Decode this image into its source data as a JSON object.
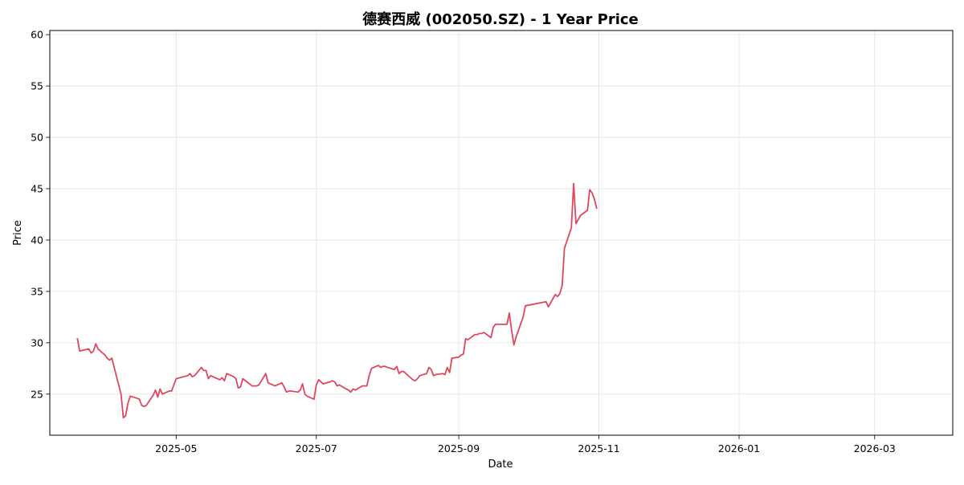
{
  "chart_data": {
    "type": "line",
    "title": "德赛西威 (002050.SZ) - 1 Year Price",
    "xlabel": "Date",
    "ylabel": "Price",
    "xlim": [
      "2025-03-07",
      "2026-04-04"
    ],
    "ylim": [
      21,
      60.4
    ],
    "grid": true,
    "x_ticks": [
      "2025-05",
      "2025-07",
      "2025-09",
      "2025-11",
      "2026-01",
      "2026-03"
    ],
    "x_tick_dates": [
      "2025-05-01",
      "2025-07-01",
      "2025-09-01",
      "2025-11-01",
      "2026-01-01",
      "2026-03-01"
    ],
    "y_ticks": [
      25,
      30,
      35,
      40,
      45,
      50,
      55,
      60
    ],
    "series": [
      {
        "color": "#e0475f",
        "points": [
          [
            "2025-03-19",
            30.4
          ],
          [
            "2025-03-20",
            29.2
          ],
          [
            "2025-03-24",
            29.4
          ],
          [
            "2025-03-25",
            29.0
          ],
          [
            "2025-03-26",
            29.2
          ],
          [
            "2025-03-27",
            29.9
          ],
          [
            "2025-03-28",
            29.4
          ],
          [
            "2025-03-31",
            28.8
          ],
          [
            "2025-04-01",
            28.5
          ],
          [
            "2025-04-02",
            28.3
          ],
          [
            "2025-04-03",
            28.5
          ],
          [
            "2025-04-07",
            25.0
          ],
          [
            "2025-04-08",
            22.7
          ],
          [
            "2025-04-09",
            22.9
          ],
          [
            "2025-04-10",
            24.1
          ],
          [
            "2025-04-11",
            24.8
          ],
          [
            "2025-04-14",
            24.6
          ],
          [
            "2025-04-15",
            24.5
          ],
          [
            "2025-04-16",
            23.9
          ],
          [
            "2025-04-17",
            23.8
          ],
          [
            "2025-04-18",
            23.9
          ],
          [
            "2025-04-21",
            24.9
          ],
          [
            "2025-04-22",
            25.4
          ],
          [
            "2025-04-23",
            24.7
          ],
          [
            "2025-04-24",
            25.5
          ],
          [
            "2025-04-25",
            25.0
          ],
          [
            "2025-04-28",
            25.3
          ],
          [
            "2025-04-29",
            25.3
          ],
          [
            "2025-04-30",
            25.9
          ],
          [
            "2025-05-01",
            26.5
          ],
          [
            "2025-05-06",
            26.8
          ],
          [
            "2025-05-07",
            27.0
          ],
          [
            "2025-05-08",
            26.7
          ],
          [
            "2025-05-09",
            26.8
          ],
          [
            "2025-05-12",
            27.6
          ],
          [
            "2025-05-13",
            27.3
          ],
          [
            "2025-05-14",
            27.3
          ],
          [
            "2025-05-15",
            26.5
          ],
          [
            "2025-05-16",
            26.8
          ],
          [
            "2025-05-19",
            26.5
          ],
          [
            "2025-05-20",
            26.4
          ],
          [
            "2025-05-21",
            26.6
          ],
          [
            "2025-05-22",
            26.3
          ],
          [
            "2025-05-23",
            27.0
          ],
          [
            "2025-05-26",
            26.7
          ],
          [
            "2025-05-27",
            26.5
          ],
          [
            "2025-05-28",
            25.6
          ],
          [
            "2025-05-29",
            25.7
          ],
          [
            "2025-05-30",
            26.5
          ],
          [
            "2025-06-03",
            25.8
          ],
          [
            "2025-06-04",
            25.8
          ],
          [
            "2025-06-05",
            25.8
          ],
          [
            "2025-06-06",
            25.9
          ],
          [
            "2025-06-09",
            27.0
          ],
          [
            "2025-06-10",
            26.1
          ],
          [
            "2025-06-11",
            26.0
          ],
          [
            "2025-06-12",
            25.9
          ],
          [
            "2025-06-13",
            25.8
          ],
          [
            "2025-06-16",
            26.1
          ],
          [
            "2025-06-17",
            25.7
          ],
          [
            "2025-06-18",
            25.2
          ],
          [
            "2025-06-19",
            25.3
          ],
          [
            "2025-06-20",
            25.3
          ],
          [
            "2025-06-23",
            25.2
          ],
          [
            "2025-06-24",
            25.4
          ],
          [
            "2025-06-25",
            26.0
          ],
          [
            "2025-06-26",
            25.0
          ],
          [
            "2025-06-27",
            24.8
          ],
          [
            "2025-06-30",
            24.5
          ],
          [
            "2025-07-01",
            25.9
          ],
          [
            "2025-07-02",
            26.4
          ],
          [
            "2025-07-03",
            26.2
          ],
          [
            "2025-07-04",
            26.0
          ],
          [
            "2025-07-07",
            26.2
          ],
          [
            "2025-07-08",
            26.3
          ],
          [
            "2025-07-09",
            26.2
          ],
          [
            "2025-07-10",
            25.8
          ],
          [
            "2025-07-11",
            25.9
          ],
          [
            "2025-07-14",
            25.5
          ],
          [
            "2025-07-15",
            25.4
          ],
          [
            "2025-07-16",
            25.2
          ],
          [
            "2025-07-17",
            25.5
          ],
          [
            "2025-07-18",
            25.4
          ],
          [
            "2025-07-21",
            25.8
          ],
          [
            "2025-07-22",
            25.8
          ],
          [
            "2025-07-23",
            25.8
          ],
          [
            "2025-07-24",
            26.8
          ],
          [
            "2025-07-25",
            27.5
          ],
          [
            "2025-07-28",
            27.8
          ],
          [
            "2025-07-29",
            27.6
          ],
          [
            "2025-07-30",
            27.7
          ],
          [
            "2025-07-31",
            27.7
          ],
          [
            "2025-08-01",
            27.6
          ],
          [
            "2025-08-04",
            27.4
          ],
          [
            "2025-08-05",
            27.7
          ],
          [
            "2025-08-06",
            27.0
          ],
          [
            "2025-08-07",
            27.2
          ],
          [
            "2025-08-08",
            27.2
          ],
          [
            "2025-08-11",
            26.6
          ],
          [
            "2025-08-12",
            26.4
          ],
          [
            "2025-08-13",
            26.3
          ],
          [
            "2025-08-14",
            26.5
          ],
          [
            "2025-08-15",
            26.8
          ],
          [
            "2025-08-18",
            27.0
          ],
          [
            "2025-08-19",
            27.6
          ],
          [
            "2025-08-20",
            27.4
          ],
          [
            "2025-08-21",
            26.8
          ],
          [
            "2025-08-22",
            26.9
          ],
          [
            "2025-08-25",
            27.0
          ],
          [
            "2025-08-26",
            26.9
          ],
          [
            "2025-08-27",
            27.6
          ],
          [
            "2025-08-28",
            27.1
          ],
          [
            "2025-08-29",
            28.5
          ],
          [
            "2025-09-01",
            28.6
          ],
          [
            "2025-09-02",
            28.8
          ],
          [
            "2025-09-03",
            28.9
          ],
          [
            "2025-09-04",
            30.4
          ],
          [
            "2025-09-05",
            30.3
          ],
          [
            "2025-09-08",
            30.8
          ],
          [
            "2025-09-09",
            30.8
          ],
          [
            "2025-09-10",
            30.9
          ],
          [
            "2025-09-11",
            30.9
          ],
          [
            "2025-09-12",
            31.0
          ],
          [
            "2025-09-15",
            30.5
          ],
          [
            "2025-09-16",
            31.5
          ],
          [
            "2025-09-17",
            31.8
          ],
          [
            "2025-09-18",
            31.8
          ],
          [
            "2025-09-19",
            31.8
          ],
          [
            "2025-09-22",
            31.8
          ],
          [
            "2025-09-23",
            32.9
          ],
          [
            "2025-09-24",
            31.2
          ],
          [
            "2025-09-25",
            29.8
          ],
          [
            "2025-09-26",
            30.6
          ],
          [
            "2025-09-29",
            32.5
          ],
          [
            "2025-09-30",
            33.6
          ],
          [
            "2025-10-09",
            34.0
          ],
          [
            "2025-10-10",
            33.5
          ],
          [
            "2025-10-13",
            34.7
          ],
          [
            "2025-10-14",
            34.5
          ],
          [
            "2025-10-15",
            34.8
          ],
          [
            "2025-10-16",
            35.6
          ],
          [
            "2025-10-17",
            39.2
          ],
          [
            "2025-10-20",
            41.2
          ],
          [
            "2025-10-21",
            45.5
          ],
          [
            "2025-10-22",
            41.6
          ],
          [
            "2025-10-23",
            42.0
          ],
          [
            "2025-10-24",
            42.4
          ],
          [
            "2025-10-27",
            42.9
          ],
          [
            "2025-10-28",
            44.9
          ],
          [
            "2025-10-29",
            44.6
          ],
          [
            "2025-10-30",
            44.0
          ],
          [
            "2025-10-31",
            43.1
          ]
        ]
      }
    ]
  }
}
